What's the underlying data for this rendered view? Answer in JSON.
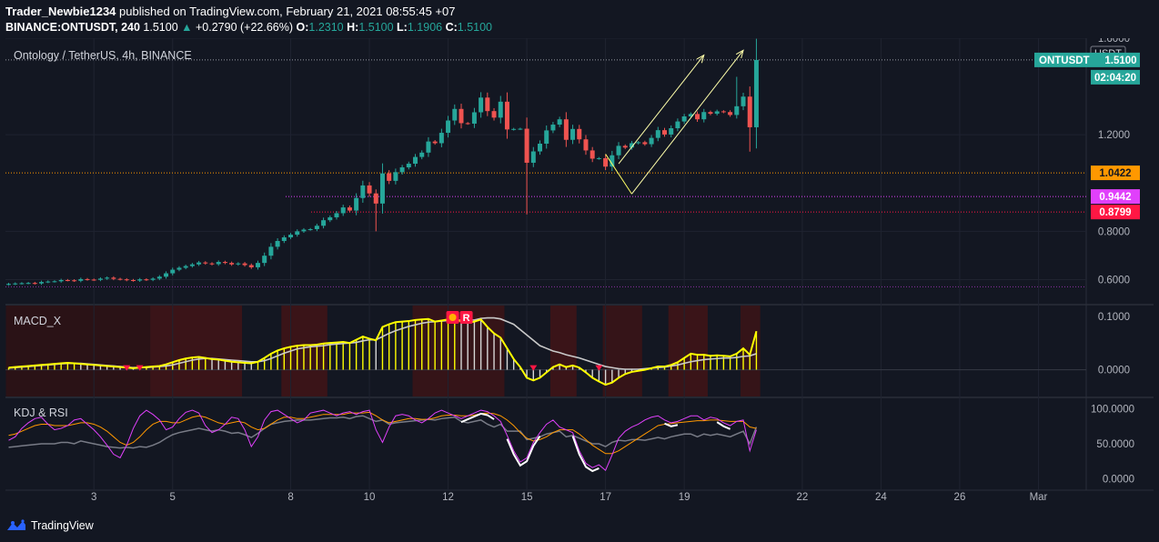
{
  "header": {
    "author": "Trader_Newbie1234",
    "published": "published on TradingView.com, February 21, 2021 08:55:45 +07",
    "symbol": "BINANCE:ONTUSDT, 240",
    "last": "1.5100",
    "change": "+0.2790 (+22.66%)",
    "o_label": "O:",
    "o_val": "1.2310",
    "h_label": "H:",
    "h_val": "1.5100",
    "l_label": "L:",
    "l_val": "1.1906",
    "c_label": "C:",
    "c_val": "1.5100"
  },
  "footer": {
    "brand": "TradingView"
  },
  "colors": {
    "bg": "#131722",
    "up": "#26a69a",
    "down": "#ef5350",
    "grid": "#1f2330",
    "axis": "#b2b5be",
    "macd": "#ffff00",
    "signal": "#c9c9c9",
    "k": "#e040fb",
    "d": "#ff9800",
    "j": "#ffffff",
    "rsi": "#787b86"
  },
  "chart_data": [
    {
      "type": "candlestick",
      "title": "Ontology / TetherUS, 4h, BINANCE",
      "currency": "USDT",
      "ylim": [
        0.5,
        1.6
      ],
      "y_ticks": [
        "0.6000",
        "0.8000",
        "1.2000",
        "1.6000"
      ],
      "x_ticks": [
        "3",
        "5",
        "8",
        "10",
        "12",
        "15",
        "17",
        "19",
        "22",
        "24",
        "26",
        "Mar"
      ],
      "x_tick_bars": [
        13,
        25,
        43,
        55,
        67,
        79,
        91,
        103,
        121,
        133,
        145,
        157
      ],
      "last_price_label": "ONTUSDT",
      "last_price": "1.5100",
      "countdown": "02:04:20",
      "levels": [
        {
          "value": "1.0422",
          "color": "#ff9800"
        },
        {
          "value": "0.9442",
          "color": "#e040fb"
        },
        {
          "value": "0.8799",
          "color": "#ff1744"
        }
      ],
      "close": [
        0.582,
        0.584,
        0.585,
        0.586,
        0.584,
        0.59,
        0.592,
        0.593,
        0.598,
        0.597,
        0.595,
        0.602,
        0.6,
        0.599,
        0.604,
        0.608,
        0.603,
        0.601,
        0.598,
        0.596,
        0.601,
        0.599,
        0.604,
        0.612,
        0.626,
        0.641,
        0.649,
        0.656,
        0.663,
        0.671,
        0.667,
        0.664,
        0.673,
        0.669,
        0.663,
        0.667,
        0.66,
        0.651,
        0.669,
        0.699,
        0.736,
        0.76,
        0.775,
        0.786,
        0.8,
        0.807,
        0.809,
        0.823,
        0.846,
        0.858,
        0.875,
        0.899,
        0.886,
        0.938,
        0.99,
        0.957,
        0.915,
        1.04,
        1.009,
        1.045,
        1.065,
        1.08,
        1.108,
        1.126,
        1.172,
        1.165,
        1.208,
        1.259,
        1.307,
        1.248,
        1.246,
        1.293,
        1.354,
        1.298,
        1.271,
        1.337,
        1.222,
        1.224,
        1.225,
        1.084,
        1.131,
        1.163,
        1.218,
        1.242,
        1.264,
        1.179,
        1.224,
        1.181,
        1.135,
        1.101,
        1.103,
        1.068,
        1.115,
        1.154,
        1.147,
        1.165,
        1.169,
        1.161,
        1.187,
        1.219,
        1.201,
        1.227,
        1.255,
        1.276,
        1.286,
        1.264,
        1.294,
        1.287,
        1.297,
        1.294,
        1.282,
        1.318,
        1.358,
        1.231,
        1.51
      ],
      "annotations": [
        "rising arrow",
        "triangle pattern arrow"
      ]
    },
    {
      "type": "line",
      "title": "MACD_X",
      "ylim": [
        -0.05,
        0.12
      ],
      "y_ticks": [
        "0.1000",
        "0.0000"
      ],
      "signal_label": "R",
      "series": [
        {
          "name": "MACD",
          "values": [
            0.004,
            0.005,
            0.006,
            0.007,
            0.008,
            0.009,
            0.01,
            0.011,
            0.012,
            0.013,
            0.012,
            0.011,
            0.01,
            0.009,
            0.008,
            0.007,
            0.006,
            0.005,
            0.004,
            0.003,
            0.004,
            0.005,
            0.006,
            0.007,
            0.01,
            0.014,
            0.018,
            0.021,
            0.023,
            0.024,
            0.022,
            0.02,
            0.019,
            0.017,
            0.015,
            0.014,
            0.013,
            0.012,
            0.015,
            0.022,
            0.03,
            0.036,
            0.04,
            0.043,
            0.045,
            0.046,
            0.046,
            0.047,
            0.049,
            0.05,
            0.051,
            0.052,
            0.05,
            0.056,
            0.062,
            0.058,
            0.055,
            0.08,
            0.085,
            0.089,
            0.09,
            0.091,
            0.093,
            0.094,
            0.095,
            0.09,
            0.092,
            0.094,
            0.096,
            0.09,
            0.088,
            0.09,
            0.094,
            0.08,
            0.068,
            0.06,
            0.04,
            0.02,
            0.005,
            -0.015,
            -0.02,
            -0.015,
            -0.005,
            0.005,
            0.01,
            0.005,
            0.008,
            0.004,
            -0.005,
            -0.015,
            -0.022,
            -0.028,
            -0.024,
            -0.015,
            -0.008,
            -0.004,
            -0.002,
            0.0,
            0.003,
            0.006,
            0.006,
            0.009,
            0.014,
            0.022,
            0.03,
            0.028,
            0.028,
            0.026,
            0.027,
            0.026,
            0.025,
            0.03,
            0.04,
            0.028,
            0.072
          ]
        },
        {
          "name": "Signal",
          "values": [
            0.003,
            0.004,
            0.005,
            0.006,
            0.007,
            0.008,
            0.009,
            0.01,
            0.011,
            0.012,
            0.012,
            0.012,
            0.011,
            0.01,
            0.009,
            0.008,
            0.007,
            0.006,
            0.005,
            0.004,
            0.004,
            0.004,
            0.005,
            0.006,
            0.007,
            0.009,
            0.012,
            0.015,
            0.018,
            0.02,
            0.021,
            0.021,
            0.02,
            0.019,
            0.018,
            0.017,
            0.016,
            0.015,
            0.015,
            0.017,
            0.021,
            0.026,
            0.031,
            0.035,
            0.039,
            0.041,
            0.043,
            0.044,
            0.045,
            0.047,
            0.048,
            0.049,
            0.05,
            0.051,
            0.054,
            0.056,
            0.056,
            0.062,
            0.068,
            0.073,
            0.077,
            0.081,
            0.084,
            0.087,
            0.089,
            0.09,
            0.091,
            0.092,
            0.093,
            0.093,
            0.093,
            0.093,
            0.096,
            0.097,
            0.097,
            0.095,
            0.09,
            0.085,
            0.075,
            0.065,
            0.055,
            0.045,
            0.04,
            0.035,
            0.032,
            0.028,
            0.025,
            0.022,
            0.018,
            0.014,
            0.01,
            0.006,
            0.004,
            0.002,
            0.001,
            0.001,
            0.001,
            0.002,
            0.003,
            0.004,
            0.005,
            0.007,
            0.009,
            0.012,
            0.015,
            0.017,
            0.019,
            0.02,
            0.021,
            0.022,
            0.022,
            0.023,
            0.025,
            0.026,
            0.03
          ]
        }
      ]
    },
    {
      "type": "line",
      "title": "KDJ & RSI",
      "ylim": [
        -15,
        115
      ],
      "y_ticks": [
        "100.0000",
        "50.0000",
        "0.0000"
      ],
      "series": [
        {
          "name": "K",
          "values": [
            55,
            60,
            72,
            80,
            86,
            88,
            78,
            70,
            72,
            76,
            84,
            86,
            78,
            70,
            60,
            48,
            35,
            30,
            48,
            72,
            90,
            98,
            92,
            84,
            70,
            74,
            86,
            95,
            98,
            94,
            76,
            66,
            70,
            78,
            88,
            86,
            70,
            46,
            60,
            84,
            96,
            98,
            92,
            86,
            80,
            84,
            94,
            96,
            98,
            94,
            90,
            94,
            96,
            92,
            96,
            98,
            70,
            52,
            74,
            90,
            92,
            90,
            84,
            80,
            86,
            94,
            98,
            94,
            90,
            86,
            90,
            94,
            98,
            96,
            90,
            82,
            62,
            40,
            24,
            30,
            52,
            66,
            78,
            84,
            74,
            70,
            66,
            40,
            22,
            16,
            20,
            12,
            34,
            58,
            68,
            74,
            78,
            84,
            88,
            90,
            84,
            80,
            82,
            86,
            90,
            90,
            84,
            88,
            86,
            80,
            76,
            82,
            84,
            40,
            70
          ]
        },
        {
          "name": "D",
          "values": [
            62,
            64,
            68,
            72,
            76,
            78,
            78,
            76,
            76,
            76,
            78,
            80,
            80,
            78,
            74,
            68,
            60,
            52,
            48,
            52,
            60,
            70,
            78,
            82,
            82,
            80,
            80,
            84,
            88,
            90,
            88,
            84,
            80,
            78,
            80,
            82,
            80,
            74,
            70,
            72,
            78,
            84,
            88,
            88,
            86,
            86,
            88,
            90,
            92,
            92,
            92,
            92,
            94,
            94,
            94,
            95,
            90,
            84,
            80,
            82,
            84,
            86,
            86,
            85,
            85,
            87,
            90,
            91,
            91,
            90,
            90,
            91,
            93,
            94,
            93,
            90,
            84,
            76,
            66,
            58,
            54,
            56,
            60,
            66,
            70,
            70,
            70,
            64,
            56,
            48,
            42,
            36,
            36,
            40,
            46,
            52,
            58,
            64,
            70,
            76,
            78,
            79,
            80,
            81,
            82,
            83,
            83,
            84,
            84,
            83,
            82,
            82,
            82,
            74,
            72
          ]
        },
        {
          "name": "RSI",
          "values": [
            45,
            46,
            47,
            48,
            49,
            50,
            50,
            50,
            52,
            52,
            50,
            54,
            52,
            50,
            48,
            46,
            45,
            44,
            45,
            44,
            46,
            45,
            48,
            52,
            58,
            63,
            66,
            68,
            70,
            72,
            70,
            68,
            70,
            68,
            65,
            66,
            63,
            59,
            65,
            72,
            78,
            80,
            82,
            83,
            84,
            84,
            84,
            85,
            86,
            87,
            87,
            88,
            86,
            89,
            90,
            86,
            82,
            84,
            78,
            80,
            81,
            82,
            83,
            84,
            85,
            84,
            86,
            87,
            88,
            82,
            80,
            82,
            84,
            78,
            74,
            78,
            68,
            68,
            68,
            56,
            58,
            60,
            64,
            66,
            68,
            60,
            62,
            58,
            54,
            50,
            50,
            46,
            52,
            55,
            54,
            56,
            56,
            55,
            57,
            59,
            57,
            60,
            62,
            64,
            64,
            60,
            64,
            62,
            64,
            62,
            60,
            64,
            68,
            50,
            74
          ]
        },
        {
          "name": "J",
          "segments": [
            [
              69,
              74
            ],
            [
              76,
              81
            ],
            [
              86,
              90
            ],
            [
              100,
              102
            ],
            [
              108,
              110
            ]
          ]
        }
      ]
    }
  ]
}
